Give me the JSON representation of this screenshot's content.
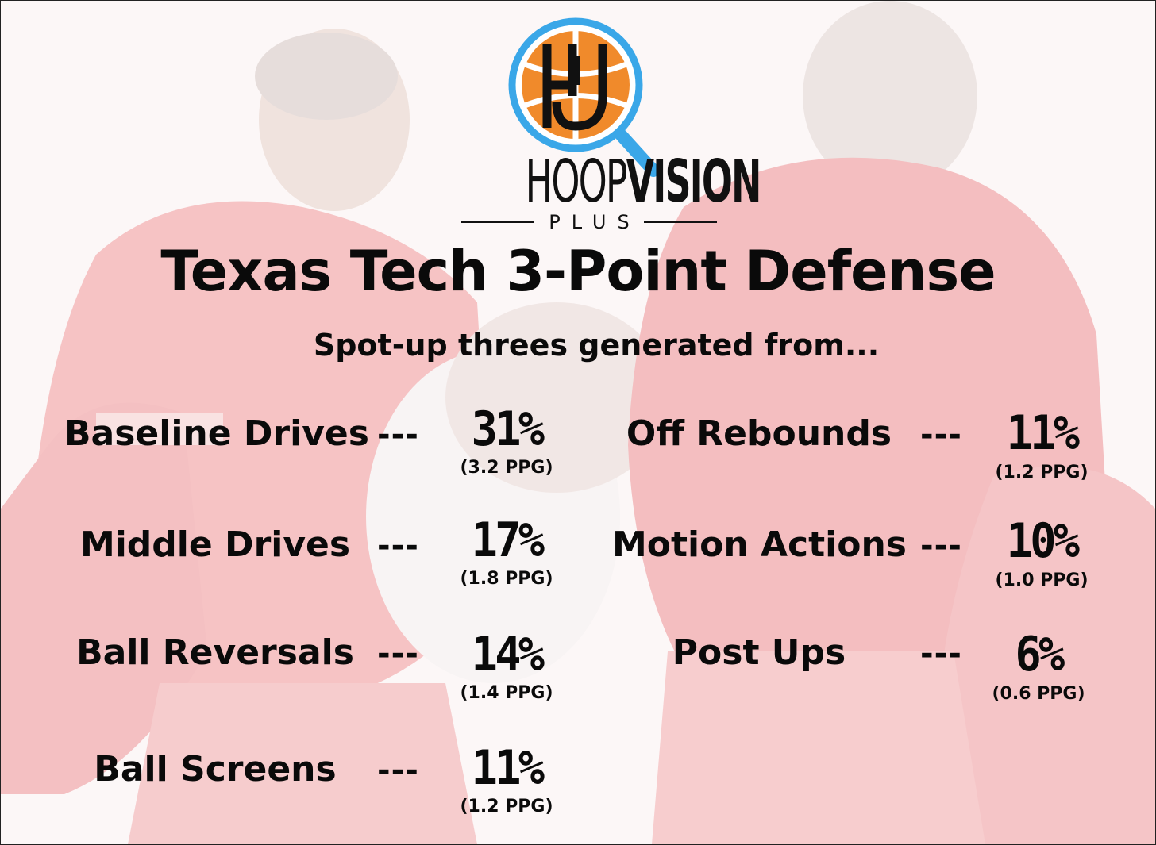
{
  "brand": {
    "logo_monogram": "HV",
    "name_light": "HOOP",
    "name_bold": "VISION",
    "sub": "PLUS",
    "colors": {
      "ring": "#3aa7e8",
      "ball": "#f08a2b",
      "ink": "#111111"
    }
  },
  "title": "Texas Tech 3-Point Defense",
  "subtitle": "Spot-up threes generated from...",
  "separator": "---",
  "stats_left": [
    {
      "label": "Baseline Drives",
      "pct": "31%",
      "ppg": "(3.2 PPG)"
    },
    {
      "label": "Middle Drives",
      "pct": "17%",
      "ppg": "(1.8 PPG)"
    },
    {
      "label": "Ball Reversals",
      "pct": "14%",
      "ppg": "(1.4 PPG)"
    },
    {
      "label": "Ball Screens",
      "pct": "11%",
      "ppg": "(1.2 PPG)"
    }
  ],
  "stats_right": [
    {
      "label": "Off Rebounds",
      "pct": "11%",
      "ppg": "(1.2 PPG)"
    },
    {
      "label": "Motion Actions",
      "pct": "10%",
      "ppg": "(1.0 PPG)"
    },
    {
      "label": "Post Ups",
      "pct": "6%",
      "ppg": "(0.6 PPG)"
    }
  ]
}
